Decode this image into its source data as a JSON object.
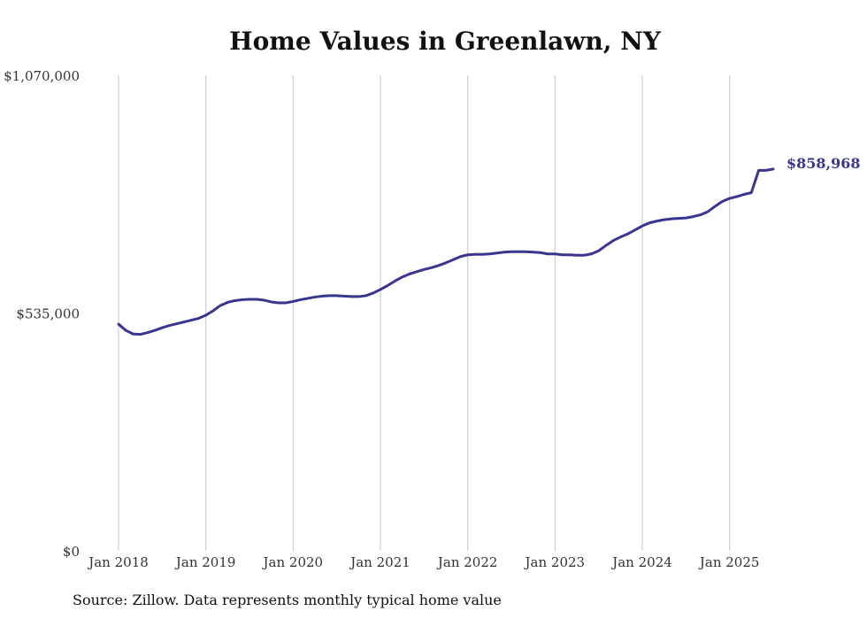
{
  "chart_data": {
    "type": "line",
    "title": "Home Values in Greenlawn, NY",
    "xlabel": "",
    "ylabel": "",
    "x_ticks": [
      "Jan 2018",
      "Jan 2019",
      "Jan 2020",
      "Jan 2021",
      "Jan 2022",
      "Jan 2023",
      "Jan 2024",
      "Jan 2025"
    ],
    "y_ticks": [
      {
        "value": 0,
        "label": "$0"
      },
      {
        "value": 535000,
        "label": "$535,000"
      },
      {
        "value": 1070000,
        "label": "$1,070,000"
      }
    ],
    "ylim": [
      0,
      1070000
    ],
    "xlim": [
      "2018-01",
      "2025-07"
    ],
    "grid": {
      "vertical": true,
      "horizontal": false
    },
    "line_color": "#3a3590",
    "end_label": "$858,968",
    "series": [
      {
        "x": [
          "2018-01",
          "2018-02",
          "2018-03",
          "2018-04",
          "2018-05",
          "2018-06",
          "2018-07",
          "2018-08",
          "2018-09",
          "2018-10",
          "2018-11",
          "2018-12",
          "2019-01",
          "2019-02",
          "2019-03",
          "2019-04",
          "2019-05",
          "2019-06",
          "2019-07",
          "2019-08",
          "2019-09",
          "2019-10",
          "2019-11",
          "2019-12",
          "2020-01",
          "2020-02",
          "2020-03",
          "2020-04",
          "2020-05",
          "2020-06",
          "2020-07",
          "2020-08",
          "2020-09",
          "2020-10",
          "2020-11",
          "2020-12",
          "2021-01",
          "2021-02",
          "2021-03",
          "2021-04",
          "2021-05",
          "2021-06",
          "2021-07",
          "2021-08",
          "2021-09",
          "2021-10",
          "2021-11",
          "2021-12",
          "2022-01",
          "2022-02",
          "2022-03",
          "2022-04",
          "2022-05",
          "2022-06",
          "2022-07",
          "2022-08",
          "2022-09",
          "2022-10",
          "2022-11",
          "2022-12",
          "2023-01",
          "2023-02",
          "2023-03",
          "2023-04",
          "2023-05",
          "2023-06",
          "2023-07",
          "2023-08",
          "2023-09",
          "2023-10",
          "2023-11",
          "2023-12",
          "2024-01",
          "2024-02",
          "2024-03",
          "2024-04",
          "2024-05",
          "2024-06",
          "2024-07",
          "2024-08",
          "2024-09",
          "2024-10",
          "2024-11",
          "2024-12",
          "2025-01",
          "2025-02",
          "2025-03",
          "2025-04",
          "2025-05",
          "2025-06",
          "2025-07"
        ],
        "values": [
          510000,
          496000,
          488000,
          487000,
          491000,
          496000,
          502000,
          507000,
          511000,
          515000,
          519000,
          523000,
          530000,
          540000,
          552000,
          559000,
          563000,
          565000,
          566000,
          566000,
          564000,
          560000,
          558000,
          558000,
          561000,
          565000,
          568000,
          571000,
          573000,
          574000,
          574000,
          573000,
          572000,
          572000,
          574000,
          580000,
          588000,
          597000,
          607000,
          616000,
          623000,
          628000,
          633000,
          637000,
          642000,
          648000,
          655000,
          662000,
          666000,
          667000,
          667000,
          668000,
          670000,
          672000,
          673000,
          673000,
          673000,
          672000,
          671000,
          668000,
          668000,
          666000,
          666000,
          665000,
          665000,
          668000,
          675000,
          687000,
          698000,
          706000,
          713000,
          722000,
          731000,
          738000,
          742000,
          745000,
          747000,
          748000,
          749000,
          752000,
          756000,
          763000,
          775000,
          786000,
          793000,
          797000,
          802000,
          806000,
          856000,
          856000,
          858968
        ]
      }
    ]
  }
}
